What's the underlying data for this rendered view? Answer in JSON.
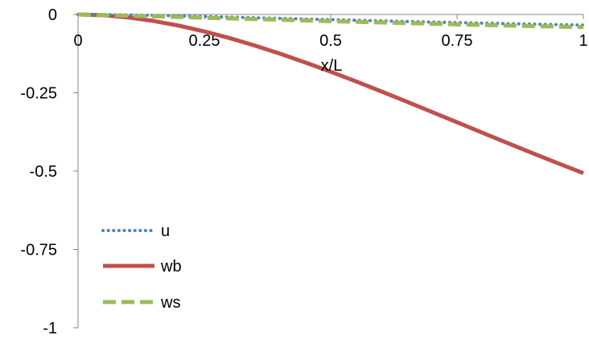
{
  "chart_data": {
    "type": "line",
    "title": "",
    "xlabel": "x/L",
    "ylabel": "",
    "xlim": [
      0,
      1
    ],
    "ylim": [
      -1,
      0
    ],
    "x_ticks": [
      0,
      0.25,
      0.5,
      0.75,
      1
    ],
    "x_tick_labels": [
      "0",
      "0.25",
      "0.5",
      "0.75",
      "1"
    ],
    "y_ticks": [
      0,
      -0.25,
      -0.5,
      -0.75,
      -1
    ],
    "y_tick_labels": [
      "0",
      "-0.25",
      "-0.5",
      "-0.75",
      "-1"
    ],
    "grid": false,
    "legend_position": "lower-left",
    "x": [
      0,
      0.05,
      0.1,
      0.15,
      0.2,
      0.25,
      0.3,
      0.35,
      0.4,
      0.45,
      0.5,
      0.55,
      0.6,
      0.65,
      0.7,
      0.75,
      0.8,
      0.85,
      0.9,
      0.95,
      1
    ],
    "series": [
      {
        "name": "u",
        "color": "#4F81BD",
        "style": "dotted",
        "values": [
          0,
          -0.0005,
          -0.0015,
          -0.003,
          -0.0045,
          -0.0065,
          -0.0085,
          -0.0105,
          -0.0125,
          -0.0145,
          -0.0165,
          -0.0185,
          -0.0205,
          -0.0225,
          -0.0242,
          -0.026,
          -0.0277,
          -0.0293,
          -0.031,
          -0.0325,
          -0.034
        ]
      },
      {
        "name": "wb",
        "color": "#C0504D",
        "style": "solid",
        "values": [
          0,
          -0.0024,
          -0.0096,
          -0.0209,
          -0.0359,
          -0.0542,
          -0.0755,
          -0.0993,
          -0.1254,
          -0.1534,
          -0.1829,
          -0.2137,
          -0.2455,
          -0.278,
          -0.311,
          -0.3442,
          -0.3775,
          -0.4105,
          -0.4432,
          -0.4752,
          -0.5065
        ]
      },
      {
        "name": "ws",
        "color": "#9BBB59",
        "style": "dashed",
        "values": [
          0,
          -0.002,
          -0.004,
          -0.006,
          -0.008,
          -0.0105,
          -0.0125,
          -0.0148,
          -0.017,
          -0.0192,
          -0.0215,
          -0.0235,
          -0.0256,
          -0.0276,
          -0.0296,
          -0.0316,
          -0.0336,
          -0.0354,
          -0.0372,
          -0.0388,
          -0.0404
        ]
      }
    ]
  }
}
